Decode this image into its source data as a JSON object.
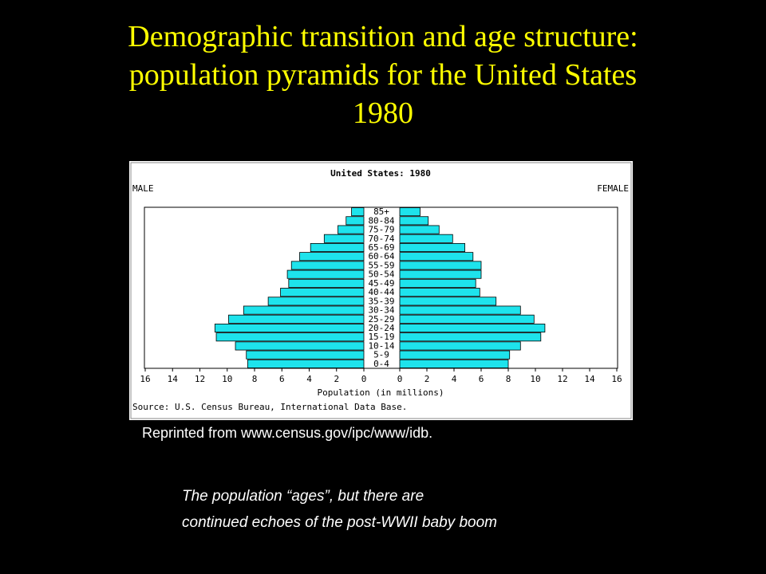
{
  "slide_title": [
    "Demographic transition and age structure:",
    "population pyramids for the United States",
    "1980"
  ],
  "chart_data": {
    "type": "pyramid",
    "title": "United States: 1980",
    "categories": [
      "0-4",
      "5-9",
      "10-14",
      "15-19",
      "20-24",
      "25-29",
      "30-34",
      "35-39",
      "40-44",
      "45-49",
      "50-54",
      "55-59",
      "60-64",
      "65-69",
      "70-74",
      "75-79",
      "80-84",
      "85+"
    ],
    "series": [
      {
        "name": "MALE",
        "color": "#1ee3ec",
        "values": [
          8.5,
          8.6,
          9.4,
          10.8,
          10.9,
          9.9,
          8.8,
          7.0,
          6.1,
          5.5,
          5.6,
          5.3,
          4.7,
          3.9,
          2.9,
          1.9,
          1.3,
          0.9
        ]
      },
      {
        "name": "FEMALE",
        "color": "#1ee3ec",
        "values": [
          8.0,
          8.1,
          8.9,
          10.4,
          10.7,
          9.9,
          8.9,
          7.1,
          5.9,
          5.6,
          6.0,
          6.0,
          5.4,
          4.8,
          3.9,
          2.9,
          2.1,
          1.5
        ]
      }
    ],
    "xlim": [
      0,
      16
    ],
    "xticks": [
      0,
      2,
      4,
      6,
      8,
      10,
      12,
      14,
      16
    ],
    "x_label": "Population (in millions)",
    "source": "Source: U.S. Census Bureau, International Data Base."
  },
  "credit": "Reprinted from www.census.gov/ipc/www/idb.",
  "note": [
    "The population “ages”, but there are",
    "continued echoes of the post-WWII baby boom"
  ]
}
